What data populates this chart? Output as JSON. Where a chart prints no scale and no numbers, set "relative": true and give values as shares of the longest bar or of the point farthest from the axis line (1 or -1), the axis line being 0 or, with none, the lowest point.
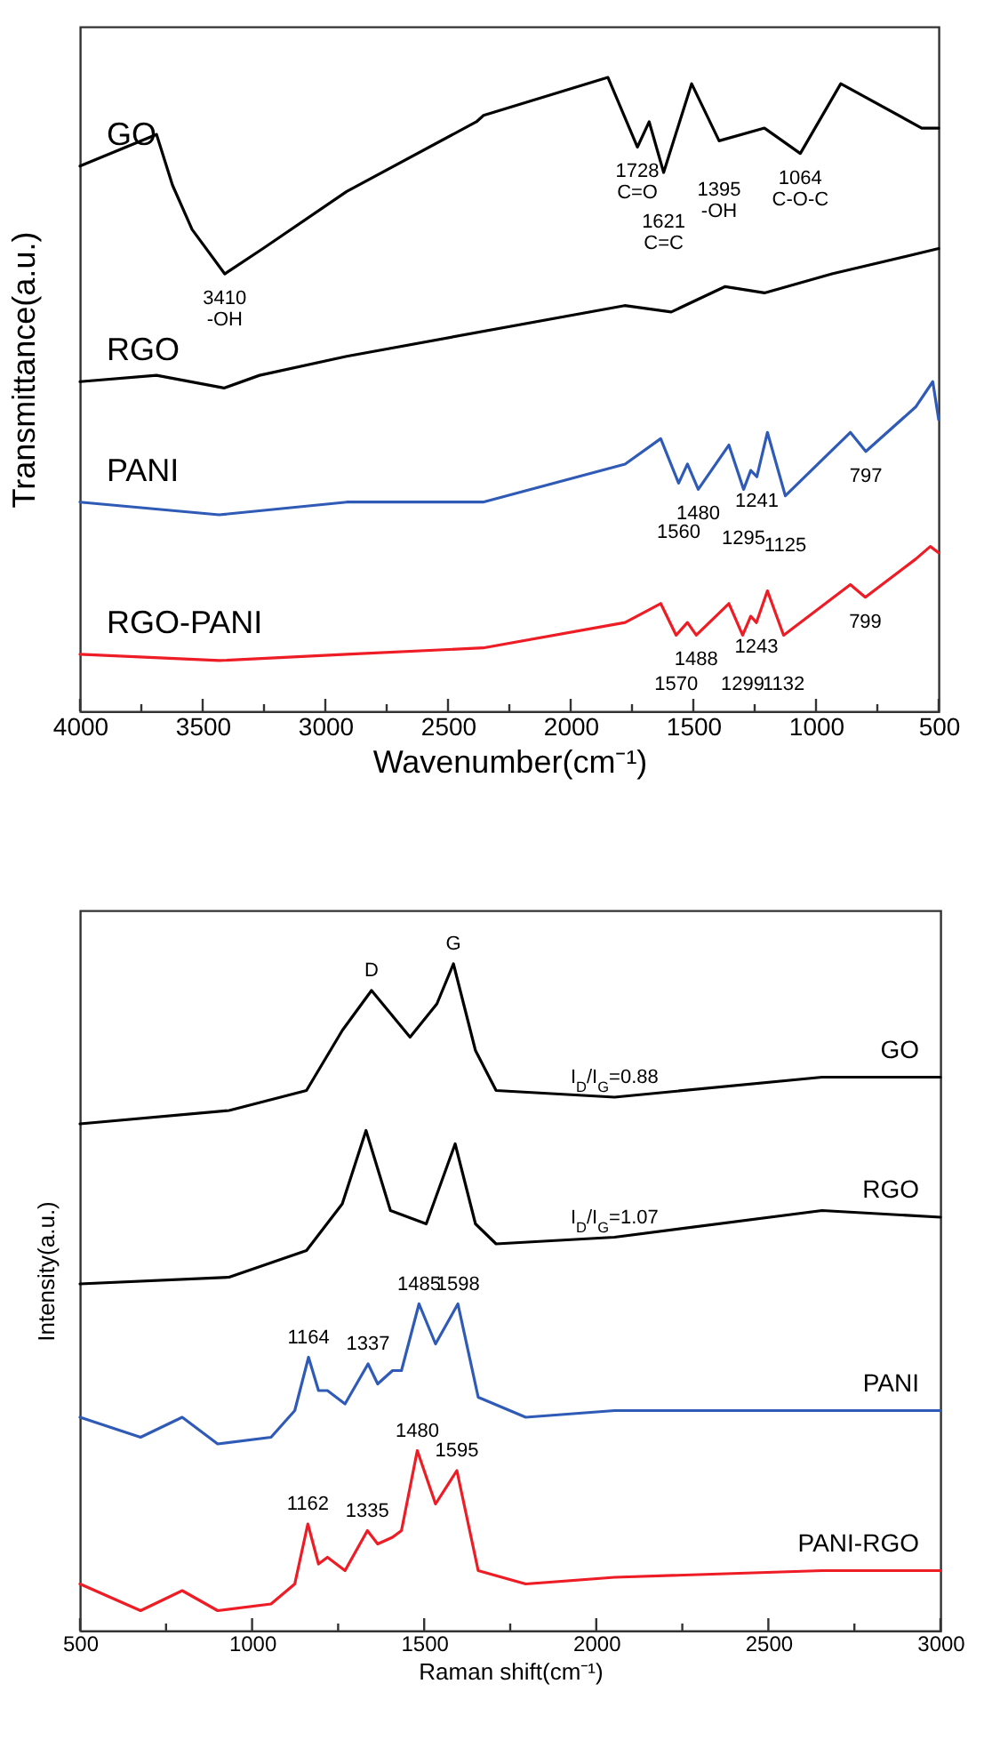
{
  "chart_data": [
    {
      "type": "line",
      "xlabel": "Wavenumber(cm⁻¹)",
      "ylabel": "Transmittance(a.u.)",
      "relative": true,
      "xlim": [
        4000,
        500
      ],
      "xticks": [
        4000,
        {
          "value": 3750,
          "label": null
        },
        3500,
        {
          "value": 3250,
          "label": null
        },
        3000,
        {
          "value": 2750,
          "label": null
        },
        2500,
        {
          "value": 2250,
          "label": null
        },
        2000,
        {
          "value": 1750,
          "label": null
        },
        1500,
        {
          "value": 1250,
          "label": null
        },
        1000,
        {
          "value": 750,
          "label": null
        },
        500
      ],
      "series": [
        {
          "name": "GO",
          "color": "#000000",
          "x": [
            4000,
            3688,
            3623,
            3543,
            3410,
            3254,
            2913,
            2384,
            2355,
            1848,
            1728,
            1680,
            1621,
            1507,
            1395,
            1210,
            1064,
            899,
            569,
            500
          ],
          "values": [
            0.86,
            0.91,
            0.83,
            0.76,
            0.69,
            0.73,
            0.82,
            0.93,
            0.94,
            1.0,
            0.89,
            0.93,
            0.85,
            0.99,
            0.9,
            0.92,
            0.88,
            0.99,
            0.92,
            0.92
          ]
        },
        {
          "name": "RGO",
          "color": "#000000",
          "x": [
            4000,
            3688,
            3413,
            3268,
            2913,
            1780,
            1590,
            1370,
            1210,
            935,
            500
          ],
          "values": [
            0.52,
            0.53,
            0.51,
            0.53,
            0.56,
            0.64,
            0.63,
            0.67,
            0.66,
            0.69,
            0.73
          ]
        },
        {
          "name": "PANI",
          "color": "#2f5bb7",
          "x": [
            4000,
            3433,
            2913,
            2357,
            1778,
            1633,
            1560,
            1524,
            1480,
            1355,
            1295,
            1266,
            1241,
            1198,
            1125,
            860,
            797,
            594,
            524,
            500
          ],
          "values": [
            0.33,
            0.31,
            0.33,
            0.33,
            0.39,
            0.43,
            0.36,
            0.39,
            0.35,
            0.42,
            0.35,
            0.38,
            0.37,
            0.44,
            0.34,
            0.44,
            0.41,
            0.48,
            0.52,
            0.46
          ]
        },
        {
          "name": "RGO-PANI",
          "color": "#ee1c25",
          "x": [
            4000,
            3433,
            2913,
            2357,
            1778,
            1633,
            1570,
            1524,
            1488,
            1355,
            1299,
            1266,
            1243,
            1198,
            1132,
            860,
            799,
            594,
            534,
            500
          ],
          "values": [
            0.09,
            0.08,
            0.09,
            0.1,
            0.14,
            0.17,
            0.12,
            0.14,
            0.12,
            0.17,
            0.12,
            0.15,
            0.14,
            0.19,
            0.12,
            0.2,
            0.18,
            0.24,
            0.26,
            0.25
          ]
        }
      ],
      "annotations": [
        {
          "text": "3410\n-OH",
          "x": 3410,
          "y": 0.69
        },
        {
          "text": "1621\nC=C",
          "x": 1621,
          "y": 0.85
        },
        {
          "text": "1728\nC=O",
          "x": 1728,
          "y": 0.89
        },
        {
          "text": "1395\n-OH",
          "x": 1395,
          "y": 0.9
        },
        {
          "text": "1064\nC-O-C",
          "x": 1064,
          "y": 0.88
        },
        {
          "text": "1560",
          "x": 1560,
          "y": 0.36
        },
        {
          "text": "1480",
          "x": 1480,
          "y": 0.35
        },
        {
          "text": "1295",
          "x": 1295,
          "y": 0.35
        },
        {
          "text": "1241",
          "x": 1241,
          "y": 0.37
        },
        {
          "text": "1125",
          "x": 1125,
          "y": 0.34
        },
        {
          "text": "797",
          "x": 797,
          "y": 0.41
        },
        {
          "text": "1570",
          "x": 1570,
          "y": 0.12
        },
        {
          "text": "1488",
          "x": 1488,
          "y": 0.12
        },
        {
          "text": "1299",
          "x": 1299,
          "y": 0.12
        },
        {
          "text": "1243",
          "x": 1243,
          "y": 0.14
        },
        {
          "text": "1132",
          "x": 1132,
          "y": 0.12
        },
        {
          "text": "799",
          "x": 799,
          "y": 0.18
        }
      ]
    },
    {
      "type": "line",
      "xlabel": "Raman shift(cm⁻¹)",
      "ylabel": "Intensity(a.u.)",
      "relative": true,
      "xlim": [
        500,
        3000
      ],
      "xticks": [
        500,
        {
          "value": 750,
          "label": null
        },
        1000,
        {
          "value": 1250,
          "label": null
        },
        1500,
        {
          "value": 1750,
          "label": null
        },
        2000,
        {
          "value": 2250,
          "label": null
        },
        2500,
        {
          "value": 2750,
          "label": null
        },
        3000
      ],
      "series": [
        {
          "name": "GO",
          "color": "#000000",
          "x": [
            500,
            933,
            1158,
            1262,
            1347,
            1459,
            1537,
            1585,
            1649,
            1709,
            2053,
            2656,
            3000
          ],
          "values": [
            0.76,
            0.78,
            0.81,
            0.9,
            0.96,
            0.89,
            0.94,
            1.0,
            0.87,
            0.81,
            0.8,
            0.83,
            0.83
          ]
        },
        {
          "name": "RGO",
          "color": "#000000",
          "x": [
            500,
            933,
            1158,
            1262,
            1331,
            1402,
            1506,
            1590,
            1649,
            1709,
            2053,
            2656,
            3000
          ],
          "values": [
            0.52,
            0.53,
            0.57,
            0.64,
            0.75,
            0.63,
            0.61,
            0.73,
            0.61,
            0.58,
            0.59,
            0.63,
            0.62
          ]
        },
        {
          "name": "PANI",
          "color": "#2f5bb7",
          "x": [
            500,
            676,
            797,
            900,
            1055,
            1124,
            1164,
            1193,
            1219,
            1270,
            1337,
            1365,
            1408,
            1434,
            1485,
            1533,
            1598,
            1657,
            1795,
            2053,
            2656,
            3000
          ],
          "values": [
            0.32,
            0.29,
            0.32,
            0.28,
            0.29,
            0.33,
            0.41,
            0.36,
            0.36,
            0.34,
            0.4,
            0.37,
            0.39,
            0.39,
            0.49,
            0.43,
            0.49,
            0.35,
            0.32,
            0.33,
            0.33,
            0.33
          ]
        },
        {
          "name": "PANI-RGO",
          "color": "#ee1c25",
          "x": [
            500,
            676,
            797,
            900,
            1055,
            1124,
            1162,
            1193,
            1219,
            1270,
            1335,
            1365,
            1408,
            1434,
            1480,
            1533,
            1595,
            1657,
            1795,
            2053,
            2656,
            3000
          ],
          "values": [
            0.07,
            0.03,
            0.06,
            0.03,
            0.04,
            0.07,
            0.16,
            0.1,
            0.11,
            0.09,
            0.15,
            0.13,
            0.14,
            0.15,
            0.27,
            0.19,
            0.24,
            0.09,
            0.07,
            0.08,
            0.09,
            0.09
          ]
        }
      ],
      "annotations": [
        {
          "text": "D",
          "x": 1347,
          "y": 0.96
        },
        {
          "text": "G",
          "x": 1585,
          "y": 1.0
        },
        {
          "text": "I$_{D}$/I$_{G}$=0.88",
          "x": 2053,
          "y": 0.8
        },
        {
          "text": "I$_{D}$/I$_{G}$=1.07",
          "x": 2053,
          "y": 0.59
        },
        {
          "text": "1164",
          "x": 1164,
          "y": 0.41
        },
        {
          "text": "1337",
          "x": 1337,
          "y": 0.4
        },
        {
          "text": "1485",
          "x": 1485,
          "y": 0.49
        },
        {
          "text": "1598",
          "x": 1598,
          "y": 0.49
        },
        {
          "text": "1162",
          "x": 1162,
          "y": 0.16
        },
        {
          "text": "1335",
          "x": 1335,
          "y": 0.15
        },
        {
          "text": "1480",
          "x": 1480,
          "y": 0.27
        },
        {
          "text": "1595",
          "x": 1595,
          "y": 0.24
        }
      ]
    }
  ]
}
